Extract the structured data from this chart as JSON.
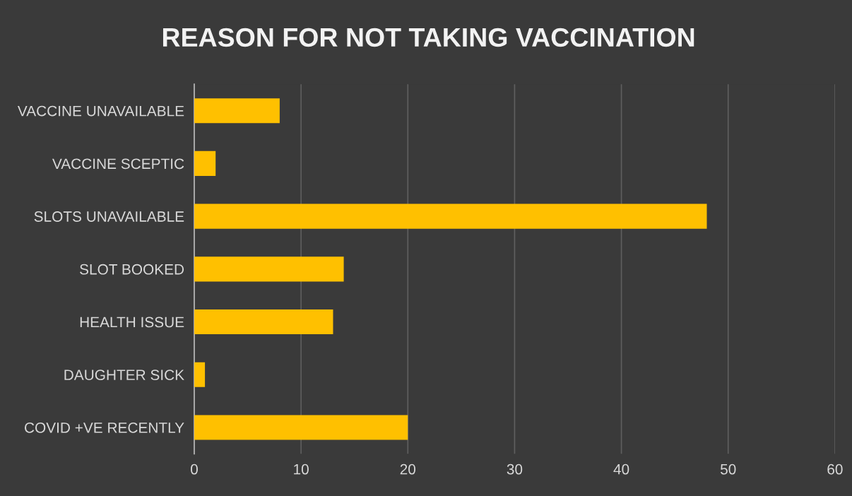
{
  "chart_data": {
    "type": "bar",
    "orientation": "horizontal",
    "title": "REASON FOR NOT TAKING VACCINATION",
    "categories": [
      "VACCINE UNAVAILABLE",
      "VACCINE SCEPTIC",
      "SLOTS UNAVAILABLE",
      "SLOT BOOKED",
      "HEALTH ISSUE",
      "DAUGHTER SICK",
      "COVID +VE RECENTLY"
    ],
    "values": [
      8,
      2,
      48,
      14,
      13,
      1,
      20
    ],
    "color": "#ffc000",
    "xlim": [
      0,
      60
    ],
    "xticks": [
      0,
      10,
      20,
      30,
      40,
      50,
      60
    ],
    "grid": "x",
    "legend": false
  }
}
